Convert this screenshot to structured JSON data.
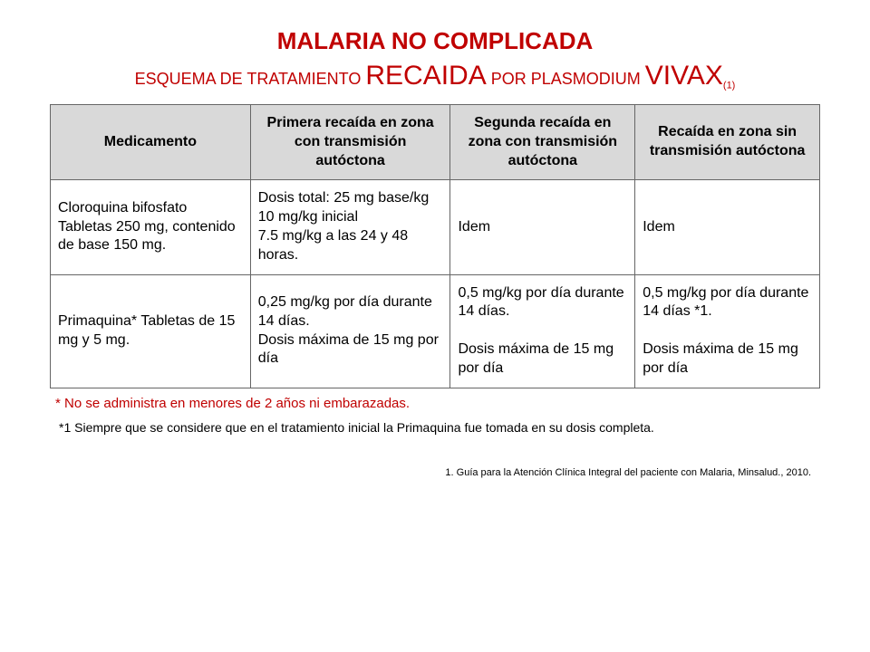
{
  "title_line1": "MALARIA NO COMPLICADA",
  "title_pre": "ESQUEMA DE TRATAMIENTO ",
  "title_big1": "RECAIDA",
  "title_mid": " POR PLASMODIUM ",
  "title_big2": "VIVAX",
  "title_sub": "(1)",
  "headers": {
    "medicamento": "Medicamento",
    "col1": "Primera recaída en zona con transmisión autóctona",
    "col2": "Segunda recaída en zona con transmisión autóctona",
    "col3": "Recaída en zona sin transmisión autóctona"
  },
  "rows": [
    {
      "med": "Cloroquina bifosfato Tabletas 250 mg, contenido de base 150 mg.",
      "c1": "Dosis total: 25 mg base/kg\n10 mg/kg inicial\n7.5 mg/kg a las 24 y 48 horas.",
      "c2": "Idem",
      "c3": "Idem"
    },
    {
      "med": "Primaquina* Tabletas de 15 mg y 5 mg.",
      "c1": "0,25 mg/kg por día durante 14 días.\nDosis máxima de 15 mg por día",
      "c2": "0,5 mg/kg por día durante 14 días.\n\nDosis máxima de 15 mg por día",
      "c3": "0,5 mg/kg por día durante 14 días *1.\n\nDosis máxima de 15 mg por día"
    }
  ],
  "note_star": "* No se administra en menores de 2 años ni embarazadas.",
  "note_star1": "*1 Siempre que se considere que en el tratamiento inicial la Primaquina fue tomada en su dosis completa.",
  "reference": "1.   Guía para la Atención Clínica Integral del paciente con Malaria,  Minsalud., 2010.",
  "colors": {
    "accent": "#c00000",
    "header_bg": "#d9d9d9",
    "border": "#666666",
    "text": "#000000",
    "background": "#ffffff"
  },
  "table_style": {
    "type": "table",
    "col_widths_pct": [
      26,
      26,
      24,
      24
    ],
    "font_size_pt": 16,
    "header_font_weight": "bold",
    "body_align": "justify",
    "header_align": "center"
  }
}
